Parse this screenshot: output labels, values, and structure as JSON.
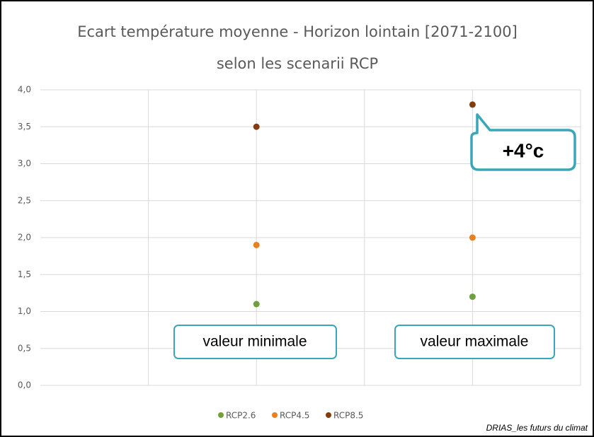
{
  "chart_data": {
    "type": "scatter",
    "title": [
      "Ecart température moyenne - Horizon lointain [2071-2100]",
      "selon les scenarii RCP"
    ],
    "x": [
      2,
      4
    ],
    "xlim": [
      0,
      5
    ],
    "xticks": [
      1,
      2,
      3,
      4,
      5
    ],
    "series": [
      {
        "name": "RCP2.6",
        "color": "#70a03e",
        "values": [
          1.1,
          1.2
        ]
      },
      {
        "name": "RCP4.5",
        "color": "#e8821e",
        "values": [
          1.9,
          2.0
        ]
      },
      {
        "name": "RCP8.5",
        "color": "#843c0c",
        "values": [
          3.5,
          3.8
        ]
      }
    ],
    "ylim": [
      0,
      4
    ],
    "yticks": [
      {
        "value": 0,
        "label": "0,0"
      },
      {
        "value": 0.5,
        "label": "0,5"
      },
      {
        "value": 1,
        "label": "1,0"
      },
      {
        "value": 1.5,
        "label": "1,5"
      },
      {
        "value": 2,
        "label": "2,0"
      },
      {
        "value": 2.5,
        "label": "2,5"
      },
      {
        "value": 3,
        "label": "3,0"
      },
      {
        "value": 3.5,
        "label": "3,5"
      },
      {
        "value": 4,
        "label": "4,0"
      }
    ],
    "grid": true,
    "legend": "bottom",
    "annotations": [
      "valeur minimale",
      "valeur maximale",
      "+4°c"
    ],
    "source": "DRIAS_les futurs du climat"
  }
}
